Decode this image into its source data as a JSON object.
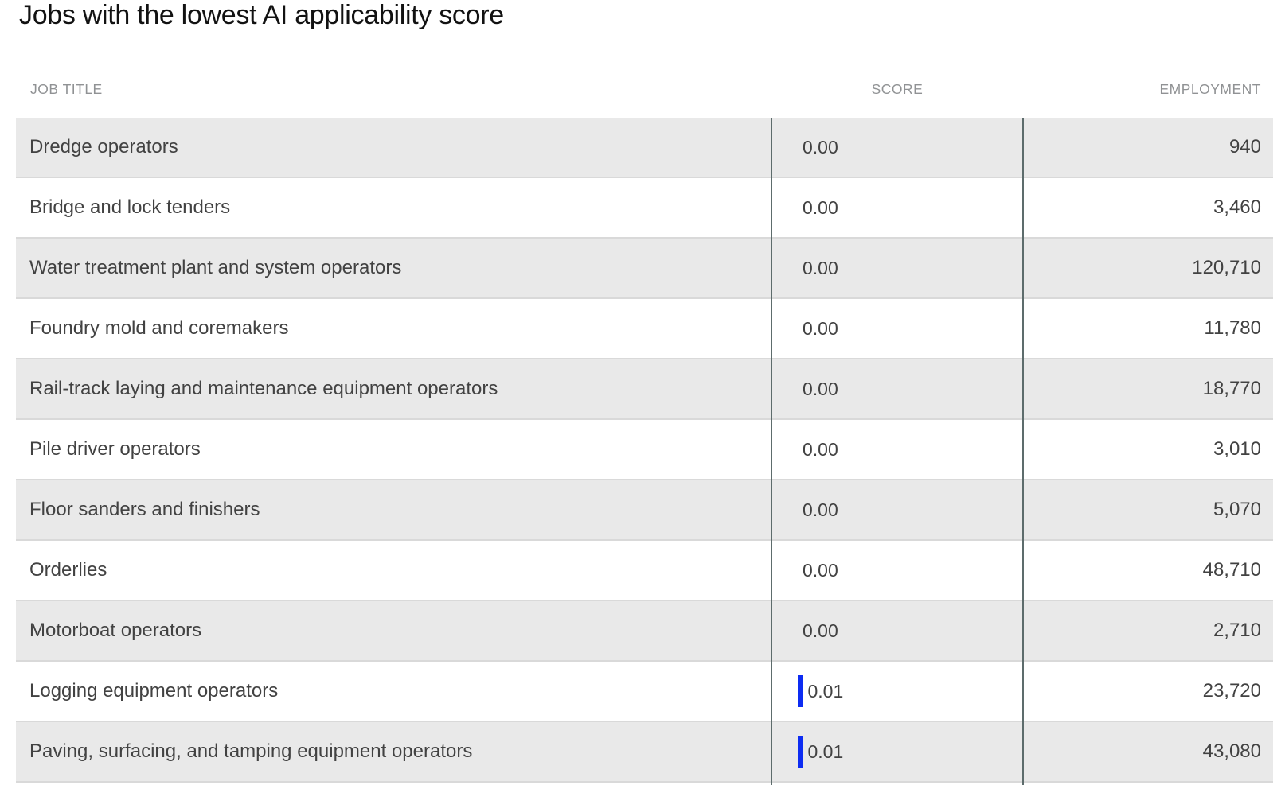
{
  "title": "Jobs with the lowest AI applicability score",
  "colors": {
    "row_alt_gray": "#e9e9e9",
    "row_border": "#d9d9d9",
    "column_divider": "#5d6c6c",
    "score_bar_blue": "#0d2cf2",
    "header_gray": "#909294",
    "cell_text": "#424242",
    "title_text": "#121212"
  },
  "table": {
    "columns": [
      {
        "key": "job_title",
        "label": "JOB TITLE"
      },
      {
        "key": "score",
        "label": "SCORE"
      },
      {
        "key": "employment",
        "label": "EMPLOYMENT"
      }
    ],
    "rows": [
      {
        "job_title": "Dredge operators",
        "score": "0.00",
        "score_value": 0,
        "employment": "940"
      },
      {
        "job_title": "Bridge and lock tenders",
        "score": "0.00",
        "score_value": 0,
        "employment": "3,460"
      },
      {
        "job_title": "Water treatment plant and system operators",
        "score": "0.00",
        "score_value": 0,
        "employment": "120,710"
      },
      {
        "job_title": "Foundry mold and coremakers",
        "score": "0.00",
        "score_value": 0,
        "employment": "11,780"
      },
      {
        "job_title": "Rail-track laying and maintenance equipment operators",
        "score": "0.00",
        "score_value": 0,
        "employment": "18,770"
      },
      {
        "job_title": "Pile driver operators",
        "score": "0.00",
        "score_value": 0,
        "employment": "3,010"
      },
      {
        "job_title": "Floor sanders and finishers",
        "score": "0.00",
        "score_value": 0,
        "employment": "5,070"
      },
      {
        "job_title": "Orderlies",
        "score": "0.00",
        "score_value": 0,
        "employment": "48,710"
      },
      {
        "job_title": "Motorboat operators",
        "score": "0.00",
        "score_value": 0,
        "employment": "2,710"
      },
      {
        "job_title": "Logging equipment operators",
        "score": "0.01",
        "score_value": 0.01,
        "employment": "23,720"
      },
      {
        "job_title": "Paving, surfacing, and tamping equipment operators",
        "score": "0.01",
        "score_value": 0.01,
        "employment": "43,080"
      }
    ]
  },
  "chart_data": {
    "type": "table",
    "title": "Jobs with the lowest AI applicability score",
    "columns": [
      "JOB TITLE",
      "SCORE",
      "EMPLOYMENT"
    ],
    "rows": [
      [
        "Dredge operators",
        0.0,
        940
      ],
      [
        "Bridge and lock tenders",
        0.0,
        3460
      ],
      [
        "Water treatment plant and system operators",
        0.0,
        120710
      ],
      [
        "Foundry mold and coremakers",
        0.0,
        11780
      ],
      [
        "Rail-track laying and maintenance equipment operators",
        0.0,
        18770
      ],
      [
        "Pile driver operators",
        0.0,
        3010
      ],
      [
        "Floor sanders and finishers",
        0.0,
        5070
      ],
      [
        "Orderlies",
        0.0,
        48710
      ],
      [
        "Motorboat operators",
        0.0,
        2710
      ],
      [
        "Logging equipment operators",
        0.01,
        23720
      ],
      [
        "Paving, surfacing, and tamping equipment operators",
        0.01,
        43080
      ]
    ],
    "notes": "Score column shows a small blue bar proportional to the AI applicability score; employment is right-aligned."
  }
}
